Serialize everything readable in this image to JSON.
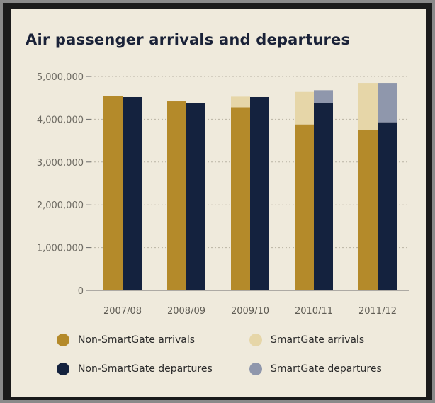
{
  "chart_data": {
    "type": "bar",
    "title": "Air passenger arrivals and departures",
    "categories": [
      "2007/08",
      "2008/09",
      "2009/10",
      "2010/11",
      "2011/12"
    ],
    "y_ticks": [
      "0",
      "1,000,000",
      "2,000,000",
      "3,000,000",
      "4,000,000",
      "5,000,000"
    ],
    "ylim": [
      0,
      5000000
    ],
    "grid": true,
    "legend_position": "bottom",
    "series": [
      {
        "name": "Non-SmartGate arrivals",
        "stack": "arrivals",
        "color": "#b48a2a",
        "values": [
          4550000,
          4420000,
          4280000,
          3880000,
          3750000
        ]
      },
      {
        "name": "SmartGate arrivals",
        "stack": "arrivals",
        "color": "#e6d6a8",
        "values": [
          0,
          0,
          250000,
          760000,
          1100000
        ]
      },
      {
        "name": "Non-SmartGate departures",
        "stack": "departures",
        "color": "#14223e",
        "values": [
          4520000,
          4380000,
          4520000,
          4380000,
          3930000
        ]
      },
      {
        "name": "SmartGate departures",
        "stack": "departures",
        "color": "#8f97ac",
        "values": [
          0,
          0,
          0,
          300000,
          920000
        ]
      }
    ]
  }
}
